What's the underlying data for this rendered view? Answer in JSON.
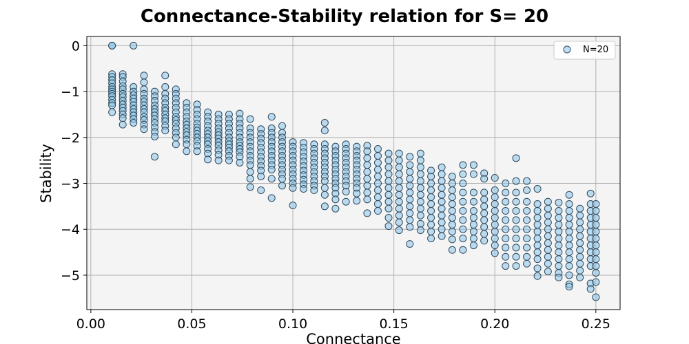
{
  "chart_data": {
    "type": "scatter",
    "title": "Connectance-Stability relation for S= 20",
    "xlabel": "Connectance",
    "ylabel": "Stability",
    "xlim": [
      -0.002,
      0.262
    ],
    "ylim": [
      -5.75,
      0.2
    ],
    "x_ticks": [
      0.0,
      0.05,
      0.1,
      0.15,
      0.2,
      0.25
    ],
    "x_tick_labels": [
      "0.00",
      "0.05",
      "0.10",
      "0.15",
      "0.20",
      "0.25"
    ],
    "y_ticks": [
      0,
      -1,
      -2,
      -3,
      -4,
      -5
    ],
    "y_tick_labels": [
      "0",
      "−1",
      "−2",
      "−3",
      "−4",
      "−5"
    ],
    "grid": true,
    "legend_position": "top-right",
    "colors": {
      "plot_background": "#f4f4f4",
      "marker_fill": "#8ec4e8",
      "marker_edge": "#2e4a5e",
      "grid": "#b0b0b0"
    },
    "series": [
      {
        "name": "N=20",
        "columns": [
          {
            "x": 0.0105,
            "values": [
              0.0,
              0.0,
              -0.62,
              -0.68,
              -0.75,
              -0.82,
              -0.9,
              -0.95,
              -1.0,
              -1.05,
              -1.1,
              -1.18,
              -1.25,
              -1.3,
              -1.45
            ]
          },
          {
            "x": 0.0158,
            "values": [
              -0.62,
              -0.68,
              -0.78,
              -0.88,
              -0.95,
              -1.05,
              -1.12,
              -1.2,
              -1.28,
              -1.35,
              -1.42,
              -1.5,
              -1.58,
              -1.72
            ]
          },
          {
            "x": 0.0211,
            "values": [
              0.0,
              -0.9,
              -1.0,
              -1.08,
              -1.15,
              -1.22,
              -1.3,
              -1.38,
              -1.45,
              -1.52,
              -1.6,
              -1.68
            ]
          },
          {
            "x": 0.0263,
            "values": [
              -0.65,
              -0.8,
              -0.95,
              -1.05,
              -1.15,
              -1.22,
              -1.3,
              -1.38,
              -1.45,
              -1.55,
              -1.62,
              -1.72,
              -1.82
            ]
          },
          {
            "x": 0.0316,
            "values": [
              -1.0,
              -1.1,
              -1.2,
              -1.3,
              -1.38,
              -1.45,
              -1.52,
              -1.6,
              -1.68,
              -1.78,
              -1.88,
              -1.98,
              -2.42
            ]
          },
          {
            "x": 0.0368,
            "values": [
              -0.65,
              -0.9,
              -1.05,
              -1.15,
              -1.25,
              -1.35,
              -1.42,
              -1.5,
              -1.58,
              -1.65,
              -1.75,
              -1.85
            ]
          },
          {
            "x": 0.0421,
            "values": [
              -0.95,
              -1.05,
              -1.15,
              -1.25,
              -1.35,
              -1.45,
              -1.55,
              -1.62,
              -1.7,
              -1.8,
              -1.9,
              -2.0,
              -2.15
            ]
          },
          {
            "x": 0.0474,
            "values": [
              -1.25,
              -1.35,
              -1.45,
              -1.55,
              -1.65,
              -1.72,
              -1.8,
              -1.88,
              -1.95,
              -2.05,
              -2.15,
              -2.3
            ]
          },
          {
            "x": 0.0526,
            "values": [
              -1.28,
              -1.4,
              -1.5,
              -1.6,
              -1.7,
              -1.78,
              -1.85,
              -1.92,
              -2.0,
              -2.08,
              -2.18,
              -2.3
            ]
          },
          {
            "x": 0.0579,
            "values": [
              -1.45,
              -1.55,
              -1.65,
              -1.75,
              -1.85,
              -1.92,
              -2.0,
              -2.08,
              -2.15,
              -2.25,
              -2.35,
              -2.48
            ]
          },
          {
            "x": 0.0632,
            "values": [
              -1.5,
              -1.6,
              -1.7,
              -1.8,
              -1.88,
              -1.95,
              -2.02,
              -2.1,
              -2.18,
              -2.28,
              -2.38,
              -2.5
            ]
          },
          {
            "x": 0.0684,
            "values": [
              -1.5,
              -1.6,
              -1.7,
              -1.8,
              -1.9,
              -2.0,
              -2.08,
              -2.15,
              -2.22,
              -2.3,
              -2.4,
              -2.5
            ]
          },
          {
            "x": 0.0737,
            "values": [
              -1.48,
              -1.6,
              -1.7,
              -1.8,
              -1.9,
              -2.0,
              -2.1,
              -2.18,
              -2.25,
              -2.32,
              -2.42,
              -2.55
            ]
          },
          {
            "x": 0.0789,
            "values": [
              -1.6,
              -1.8,
              -1.9,
              -2.0,
              -2.1,
              -2.2,
              -2.3,
              -2.4,
              -2.5,
              -2.6,
              -2.75,
              -2.9,
              -3.08
            ]
          },
          {
            "x": 0.0842,
            "values": [
              -1.82,
              -1.92,
              -2.02,
              -2.12,
              -2.22,
              -2.32,
              -2.42,
              -2.52,
              -2.62,
              -2.72,
              -2.85,
              -3.15
            ]
          },
          {
            "x": 0.0895,
            "values": [
              -1.55,
              -1.8,
              -1.9,
              -2.0,
              -2.1,
              -2.2,
              -2.3,
              -2.4,
              -2.5,
              -2.6,
              -2.7,
              -2.9,
              -3.32
            ]
          },
          {
            "x": 0.0947,
            "values": [
              -1.75,
              -1.9,
              -2.0,
              -2.1,
              -2.2,
              -2.3,
              -2.4,
              -2.5,
              -2.6,
              -2.7,
              -2.8,
              -2.9,
              -3.05
            ]
          },
          {
            "x": 0.1,
            "values": [
              -2.1,
              -2.2,
              -2.3,
              -2.4,
              -2.5,
              -2.6,
              -2.7,
              -2.8,
              -2.9,
              -3.0,
              -3.1,
              -3.48
            ]
          },
          {
            "x": 0.1053,
            "values": [
              -2.12,
              -2.22,
              -2.32,
              -2.42,
              -2.52,
              -2.62,
              -2.72,
              -2.82,
              -2.92,
              -3.02,
              -3.12
            ]
          },
          {
            "x": 0.1105,
            "values": [
              -2.15,
              -2.25,
              -2.35,
              -2.45,
              -2.55,
              -2.65,
              -2.75,
              -2.85,
              -2.95,
              -3.05,
              -3.15
            ]
          },
          {
            "x": 0.1158,
            "values": [
              -1.68,
              -1.85,
              -2.15,
              -2.25,
              -2.35,
              -2.45,
              -2.55,
              -2.65,
              -2.75,
              -2.85,
              -2.95,
              -3.1,
              -3.25,
              -3.5
            ]
          },
          {
            "x": 0.1211,
            "values": [
              -2.2,
              -2.3,
              -2.4,
              -2.5,
              -2.6,
              -2.7,
              -2.8,
              -2.9,
              -3.0,
              -3.1,
              -3.22,
              -3.35,
              -3.55
            ]
          },
          {
            "x": 0.1263,
            "values": [
              -2.15,
              -2.25,
              -2.35,
              -2.45,
              -2.55,
              -2.65,
              -2.75,
              -2.85,
              -2.95,
              -3.05,
              -3.18,
              -3.4
            ]
          },
          {
            "x": 0.1316,
            "values": [
              -2.2,
              -2.3,
              -2.4,
              -2.5,
              -2.6,
              -2.7,
              -2.8,
              -2.9,
              -3.0,
              -3.1,
              -3.22,
              -3.38
            ]
          },
          {
            "x": 0.1368,
            "values": [
              -2.18,
              -2.3,
              -2.45,
              -2.6,
              -2.75,
              -2.9,
              -3.05,
              -3.2,
              -3.35,
              -3.65
            ]
          },
          {
            "x": 0.1421,
            "values": [
              -2.25,
              -2.4,
              -2.55,
              -2.7,
              -2.85,
              -3.0,
              -3.15,
              -3.3,
              -3.45,
              -3.6
            ]
          },
          {
            "x": 0.1474,
            "values": [
              -2.35,
              -2.5,
              -2.65,
              -2.8,
              -2.95,
              -3.1,
              -3.25,
              -3.4,
              -3.55,
              -3.75,
              -3.93
            ]
          },
          {
            "x": 0.1526,
            "values": [
              -2.35,
              -2.5,
              -2.65,
              -2.8,
              -2.95,
              -3.1,
              -3.25,
              -3.4,
              -3.55,
              -3.7,
              -3.85,
              -4.02
            ]
          },
          {
            "x": 0.1579,
            "values": [
              -2.42,
              -2.6,
              -2.75,
              -2.9,
              -3.05,
              -3.2,
              -3.35,
              -3.5,
              -3.65,
              -3.8,
              -3.95,
              -4.32
            ]
          },
          {
            "x": 0.1632,
            "values": [
              -2.35,
              -2.5,
              -2.65,
              -2.8,
              -2.95,
              -3.1,
              -3.25,
              -3.4,
              -3.55,
              -3.7,
              -3.88,
              -4.02
            ]
          },
          {
            "x": 0.1684,
            "values": [
              -2.72,
              -2.85,
              -3.0,
              -3.15,
              -3.3,
              -3.45,
              -3.6,
              -3.75,
              -3.9,
              -4.05,
              -4.2
            ]
          },
          {
            "x": 0.1737,
            "values": [
              -2.65,
              -2.8,
              -2.95,
              -3.1,
              -3.25,
              -3.4,
              -3.55,
              -3.7,
              -3.85,
              -4.0,
              -4.15
            ]
          },
          {
            "x": 0.1789,
            "values": [
              -2.85,
              -3.0,
              -3.15,
              -3.3,
              -3.45,
              -3.6,
              -3.75,
              -3.9,
              -4.05,
              -4.22,
              -4.45
            ]
          },
          {
            "x": 0.1842,
            "values": [
              -2.6,
              -2.8,
              -3.0,
              -3.2,
              -3.4,
              -3.6,
              -3.8,
              -4.0,
              -4.2,
              -4.45
            ]
          },
          {
            "x": 0.1895,
            "values": [
              -2.6,
              -2.8,
              -3.2,
              -3.4,
              -3.6,
              -3.75,
              -3.9,
              -4.05,
              -4.2,
              -4.35
            ]
          },
          {
            "x": 0.1947,
            "values": [
              -2.78,
              -2.9,
              -3.2,
              -3.35,
              -3.5,
              -3.65,
              -3.8,
              -3.95,
              -4.1,
              -4.25
            ]
          },
          {
            "x": 0.2,
            "values": [
              -2.88,
              -3.15,
              -3.3,
              -3.45,
              -3.6,
              -3.75,
              -3.9,
              -4.05,
              -4.2,
              -4.35,
              -4.52
            ]
          },
          {
            "x": 0.2053,
            "values": [
              -3.0,
              -3.2,
              -3.4,
              -3.6,
              -3.8,
              -4.0,
              -4.2,
              -4.4,
              -4.6,
              -4.8
            ]
          },
          {
            "x": 0.2105,
            "values": [
              -2.45,
              -2.95,
              -3.2,
              -3.4,
              -3.6,
              -3.8,
              -4.0,
              -4.2,
              -4.4,
              -4.6,
              -4.8
            ]
          },
          {
            "x": 0.2158,
            "values": [
              -2.95,
              -3.15,
              -3.4,
              -3.6,
              -3.8,
              -4.0,
              -4.2,
              -4.4,
              -4.6,
              -4.75
            ]
          },
          {
            "x": 0.2211,
            "values": [
              -3.12,
              -3.45,
              -3.6,
              -3.75,
              -3.9,
              -4.05,
              -4.2,
              -4.35,
              -4.5,
              -4.65,
              -4.85,
              -5.02
            ]
          },
          {
            "x": 0.2263,
            "values": [
              -3.4,
              -3.55,
              -3.7,
              -3.85,
              -4.0,
              -4.15,
              -4.3,
              -4.45,
              -4.6,
              -4.75,
              -4.92
            ]
          },
          {
            "x": 0.2316,
            "values": [
              -3.42,
              -3.6,
              -3.75,
              -3.9,
              -4.05,
              -4.2,
              -4.35,
              -4.5,
              -4.65,
              -4.8,
              -4.95,
              -5.05
            ]
          },
          {
            "x": 0.2368,
            "values": [
              -3.25,
              -3.45,
              -3.6,
              -3.75,
              -3.9,
              -4.05,
              -4.2,
              -4.35,
              -4.5,
              -4.65,
              -4.8,
              -5.0,
              -5.2,
              -5.25
            ]
          },
          {
            "x": 0.2421,
            "values": [
              -3.55,
              -3.7,
              -3.85,
              -4.0,
              -4.15,
              -4.3,
              -4.45,
              -4.6,
              -4.75,
              -4.9,
              -5.05
            ]
          },
          {
            "x": 0.2474,
            "values": [
              -3.22,
              -3.45,
              -3.6,
              -3.75,
              -3.9,
              -4.05,
              -4.2,
              -4.35,
              -4.5,
              -4.65,
              -4.8,
              -5.18,
              -5.3
            ]
          },
          {
            "x": 0.25,
            "values": [
              -3.45,
              -3.6,
              -3.75,
              -3.9,
              -4.05,
              -4.2,
              -4.35,
              -4.5,
              -4.65,
              -4.8,
              -4.95,
              -5.15,
              -5.48
            ]
          }
        ]
      }
    ]
  }
}
